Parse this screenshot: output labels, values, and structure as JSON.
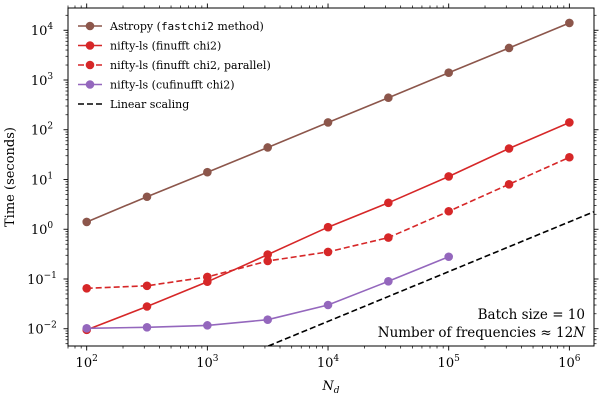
{
  "chart_data": {
    "type": "line",
    "xlabel": "N",
    "xlabel_sub": "d",
    "ylabel": "Time (seconds)",
    "x_scale": "log",
    "y_scale": "log",
    "xlim": [
      70,
      1600000
    ],
    "ylim": [
      0.0045,
      28000
    ],
    "x_ticks": [
      {
        "value": 100,
        "base": "10",
        "exp": "2"
      },
      {
        "value": 1000,
        "base": "10",
        "exp": "3"
      },
      {
        "value": 10000,
        "base": "10",
        "exp": "4"
      },
      {
        "value": 100000,
        "base": "10",
        "exp": "5"
      },
      {
        "value": 1000000,
        "base": "10",
        "exp": "6"
      }
    ],
    "y_ticks": [
      {
        "value": 0.01,
        "base": "10",
        "exp": "−2"
      },
      {
        "value": 0.1,
        "base": "10",
        "exp": "−1"
      },
      {
        "value": 1,
        "base": "10",
        "exp": "0"
      },
      {
        "value": 10,
        "base": "10",
        "exp": "1"
      },
      {
        "value": 100,
        "base": "10",
        "exp": "2"
      },
      {
        "value": 1000,
        "base": "10",
        "exp": "3"
      },
      {
        "value": 10000,
        "base": "10",
        "exp": "4"
      }
    ],
    "legend_position": "top-left",
    "series": [
      {
        "name": "Astropy (fastchi2 method)",
        "name_parts": [
          "Astropy (",
          "fastchi2",
          " method)"
        ],
        "color": "#8c564b",
        "dash": "solid",
        "marker": "circle",
        "x": [
          100,
          316,
          1000,
          3162,
          10000,
          31623,
          100000,
          316228,
          1000000
        ],
        "y": [
          1.4,
          4.5,
          14,
          44,
          140,
          440,
          1400,
          4400,
          14000
        ]
      },
      {
        "name": "nifty-ls (finufft chi2)",
        "color": "#d62728",
        "dash": "solid",
        "marker": "circle",
        "x": [
          100,
          316,
          1000,
          3162,
          10000,
          31623,
          100000,
          316228,
          1000000
        ],
        "y": [
          0.0095,
          0.028,
          0.088,
          0.31,
          1.1,
          3.4,
          11.5,
          42,
          140
        ]
      },
      {
        "name": "nifty-ls (finufft chi2, parallel)",
        "color": "#d62728",
        "dash": "dashed",
        "marker": "circle",
        "x": [
          100,
          316,
          1000,
          3162,
          10000,
          31623,
          100000,
          316228,
          1000000
        ],
        "y": [
          0.065,
          0.073,
          0.11,
          0.23,
          0.35,
          0.68,
          2.3,
          8.0,
          28
        ]
      },
      {
        "name": "nifty-ls (cufinufft chi2)",
        "color": "#9467bd",
        "dash": "solid",
        "marker": "circle",
        "x": [
          100,
          316,
          1000,
          3162,
          10000,
          31623,
          100000
        ],
        "y": [
          0.0102,
          0.0107,
          0.0117,
          0.0152,
          0.03,
          0.09,
          0.28
        ]
      },
      {
        "name": "Linear scaling",
        "color": "#000000",
        "dash": "dashed",
        "marker": "none",
        "x": [
          3200,
          1600000
        ],
        "y": [
          0.0045,
          2.25
        ]
      }
    ],
    "annotations": [
      {
        "text": "Batch size = 10",
        "position": "bottom-right"
      },
      {
        "text_parts": [
          "Number of frequencies ≈ 12",
          "N"
        ],
        "position": "bottom-right"
      }
    ]
  }
}
